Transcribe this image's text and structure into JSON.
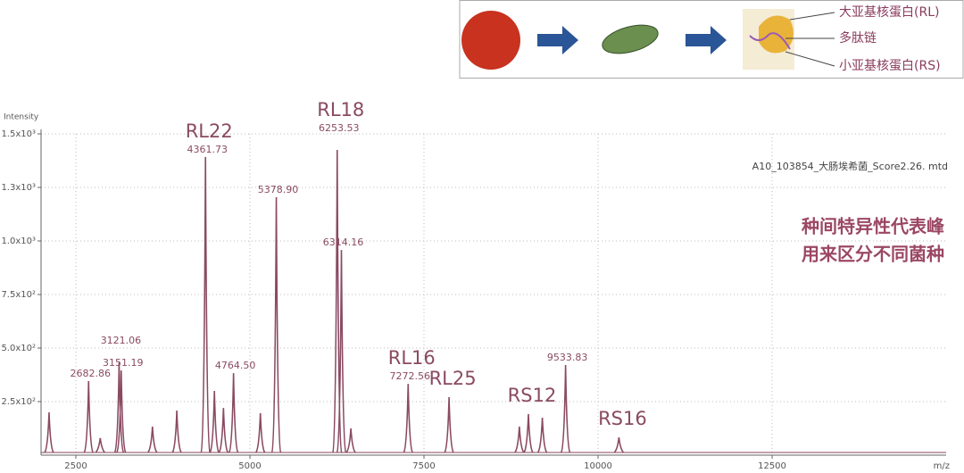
{
  "diagram": {
    "labels": [
      "大亚基核蛋白(RL)",
      "多肽链",
      "小亚基核蛋白(RS)"
    ]
  },
  "chart_data": {
    "type": "spectrum",
    "y_label": "Intensity",
    "x_label": "m/z",
    "file_label": "A10_103854_大肠埃希菌_Score2.26. mtd",
    "annotations": [
      "种间特异性代表峰",
      "用来区分不同菌种"
    ],
    "color": "#8a4a62",
    "grid": true,
    "xlim": [
      2000,
      15000
    ],
    "ylim": [
      0,
      1500
    ],
    "xticks": [
      2500,
      5000,
      7500,
      10000,
      12500
    ],
    "yticks": [
      {
        "value": 250,
        "label": "2.5x10²"
      },
      {
        "value": 500,
        "label": "5.0x10²"
      },
      {
        "value": 750,
        "label": "7.5x10²"
      },
      {
        "value": 1000,
        "label": "1.0x10³"
      },
      {
        "value": 1250,
        "label": "1.3x10³"
      },
      {
        "value": 1500,
        "label": "1.5x10³"
      }
    ],
    "x": [
      2115,
      2682.86,
      2850,
      3121.06,
      3151.19,
      3600,
      3950,
      4361.73,
      4490,
      4620,
      4764.5,
      5150,
      5378.9,
      6253.53,
      6314.16,
      6450,
      7272.56,
      7860,
      8870,
      9000,
      9200,
      9533.83,
      10300
    ],
    "values": [
      200,
      346,
      80,
      433,
      395,
      133,
      208,
      1392,
      300,
      220,
      383,
      196,
      1204,
      1425,
      958,
      125,
      333,
      271,
      133,
      192,
      175,
      421,
      83
    ],
    "peak_labels": [
      null,
      "2682.86",
      null,
      "3121.06",
      "3151.19",
      null,
      null,
      "4361.73",
      null,
      null,
      "4764.50",
      null,
      "5378.90",
      "6253.53",
      "6314.16",
      null,
      "7272.56",
      null,
      null,
      null,
      null,
      "9533.83",
      null
    ],
    "ion_labels": [
      null,
      null,
      null,
      null,
      null,
      null,
      null,
      "RL22",
      null,
      null,
      null,
      null,
      null,
      "RL18",
      null,
      null,
      "RL16",
      "RL25",
      null,
      "RS12",
      null,
      null,
      "RS16"
    ]
  }
}
